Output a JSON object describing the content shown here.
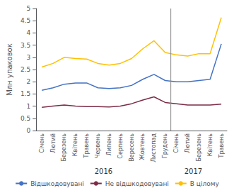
{
  "chart_data": {
    "type": "line",
    "y_label": "Млн упаковок",
    "categories": [
      "Січень",
      "Лютий",
      "Березень",
      "Квітень",
      "Травень",
      "Червень",
      "Липень",
      "Серпень",
      "Вересень",
      "Жовтень",
      "Листопад",
      "Грудень",
      "Січень",
      "Лютий",
      "Березень",
      "Квітень",
      "Травень"
    ],
    "series": [
      {
        "name": "Відшкодовувані",
        "color": "#4472C4",
        "values": [
          1.65,
          1.75,
          1.9,
          1.95,
          1.95,
          1.75,
          1.72,
          1.75,
          1.85,
          2.1,
          2.3,
          2.05,
          2.0,
          2.0,
          2.05,
          2.1,
          3.55
        ]
      },
      {
        "name": "Не відшкодовувані",
        "color": "#7B2C47",
        "values": [
          0.95,
          1.0,
          1.05,
          1.0,
          0.98,
          0.98,
          0.97,
          1.0,
          1.1,
          1.25,
          1.38,
          1.15,
          1.1,
          1.05,
          1.05,
          1.05,
          1.08
        ]
      },
      {
        "name": "В цілому",
        "color": "#FFC000",
        "values": [
          2.6,
          2.75,
          3.0,
          2.95,
          2.93,
          2.75,
          2.68,
          2.75,
          2.95,
          3.35,
          3.68,
          3.2,
          3.1,
          3.05,
          3.15,
          3.15,
          4.63
        ]
      }
    ],
    "ylim": [
      0,
      5
    ],
    "yticks": [
      0,
      0.5,
      1,
      1.5,
      2,
      2.5,
      3,
      3.5,
      4,
      4.5,
      5
    ],
    "annotations": [
      {
        "text": "2016",
        "x": 5.5
      },
      {
        "text": "2017",
        "x": 13.5
      }
    ],
    "vlines": [
      11.5
    ],
    "grid": false,
    "legend": "bottom"
  }
}
